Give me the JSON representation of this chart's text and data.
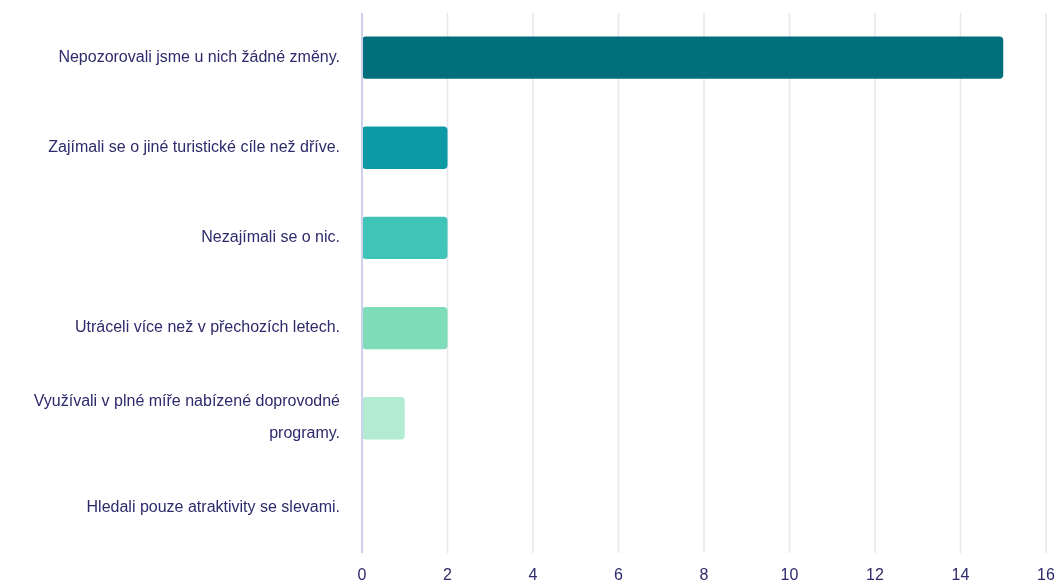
{
  "chart_data": {
    "type": "bar",
    "orientation": "horizontal",
    "categories": [
      "Nepozorovali jsme u nich žádné změny.",
      "Zajímali se o jiné turistické cíle než dříve.",
      "Nezajímali se o nic.",
      "Utráceli více než v přechozích letech.",
      "Využívali v plné míře nabízené doprovodné programy.",
      "Hledali pouze atraktivity se slevami."
    ],
    "values": [
      15,
      2,
      2,
      2,
      1,
      0
    ],
    "colors": [
      "#006f7c",
      "#0e9aa5",
      "#40c4b8",
      "#7fdcb8",
      "#b3ebd2",
      "#d9f5e8"
    ],
    "xlim": [
      0,
      16
    ],
    "xticks": [
      0,
      2,
      4,
      6,
      8,
      10,
      12,
      14,
      16
    ],
    "grid": "x"
  }
}
